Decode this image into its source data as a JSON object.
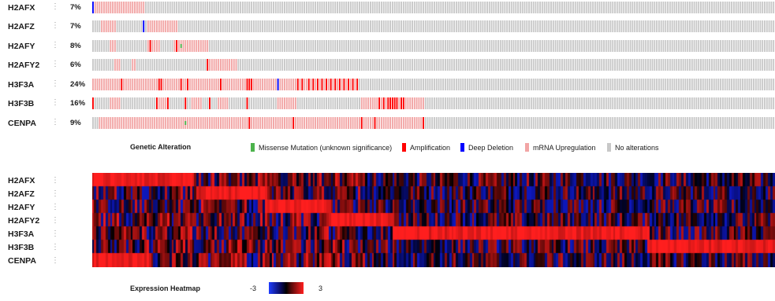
{
  "chart_data": [
    {
      "type": "oncoprint",
      "rows": [
        {
          "gene": "H2AFX",
          "percent": "7%"
        },
        {
          "gene": "H2AFZ",
          "percent": "7%"
        },
        {
          "gene": "H2AFY",
          "percent": "8%"
        },
        {
          "gene": "H2AFY2",
          "percent": "6%"
        },
        {
          "gene": "H3F3A",
          "percent": "24%"
        },
        {
          "gene": "H3F3B",
          "percent": "16%"
        },
        {
          "gene": "CENPA",
          "percent": "9%"
        }
      ],
      "num_samples": 310,
      "alterations": {
        "H2AFX": {
          "upregulation": [
            [
              1,
              23
            ]
          ],
          "amplification": [],
          "deep_deletion": [
            0
          ],
          "missense": []
        },
        "H2AFZ": {
          "upregulation": [
            [
              4,
              10
            ],
            [
              25,
              38
            ]
          ],
          "amplification": [],
          "deep_deletion": [
            23
          ],
          "missense": []
        },
        "H2AFY": {
          "upregulation": [
            [
              8,
              10
            ],
            [
              25,
              30
            ],
            [
              37,
              52
            ]
          ],
          "amplification": [
            26,
            38
          ],
          "deep_deletion": [],
          "missense": [
            40
          ]
        },
        "H2AFY2": {
          "upregulation": [
            [
              10,
              12
            ],
            [
              18,
              19
            ],
            [
              53,
              65
            ]
          ],
          "amplification": [
            52
          ],
          "deep_deletion": [],
          "missense": []
        },
        "H3F3A": {
          "upregulation": [
            [
              0,
              120
            ]
          ],
          "amplification": [
            13,
            30,
            31,
            40,
            43,
            58,
            70,
            71,
            72,
            84,
            93,
            95,
            98,
            100,
            102,
            104,
            106,
            108,
            110,
            112,
            114,
            116,
            118,
            120
          ],
          "deep_deletion": [
            84
          ],
          "missense": []
        },
        "H3F3B": {
          "upregulation": [
            [
              8,
              12
            ],
            [
              30,
              34
            ],
            [
              45,
              49
            ],
            [
              57,
              61
            ],
            [
              84,
              92
            ],
            [
              122,
              150
            ]
          ],
          "amplification": [
            0,
            29,
            34,
            42,
            53,
            70,
            130,
            132,
            134,
            135,
            136,
            137,
            138,
            140,
            141
          ],
          "deep_deletion": [],
          "missense": []
        },
        "CENPA": {
          "upregulation": [
            [
              3,
              150
            ]
          ],
          "amplification": [
            71,
            91,
            122,
            128,
            150
          ],
          "deep_deletion": [],
          "missense": [
            42
          ]
        }
      },
      "legend": {
        "title": "Genetic Alteration",
        "items": [
          {
            "label": "Missense Mutation (unknown significance)",
            "color": "#4cb34c"
          },
          {
            "label": "Amplification",
            "color": "#ff0000"
          },
          {
            "label": "Deep Deletion",
            "color": "#0000ff"
          },
          {
            "label": "mRNA Upregulation",
            "color": "#f2a5a5"
          },
          {
            "label": "No alterations",
            "color": "#c8c8c8"
          }
        ]
      }
    },
    {
      "type": "heatmap",
      "rows": [
        "H2AFX",
        "H2AFZ",
        "H2AFY",
        "H2AFY2",
        "H3F3A",
        "H3F3B",
        "CENPA"
      ],
      "high_blocks": [
        {
          "gene": "H2AFX",
          "from": 0,
          "to": 22
        },
        {
          "gene": "H2AFZ",
          "from": 24,
          "to": 38
        },
        {
          "gene": "H2AFY",
          "from": 38,
          "to": 52
        },
        {
          "gene": "H2AFY2",
          "from": 52,
          "to": 66
        },
        {
          "gene": "H3F3A",
          "from": 66,
          "to": 122
        },
        {
          "gene": "H3F3B",
          "from": 122,
          "to": 150
        },
        {
          "gene": "CENPA",
          "from": 0,
          "to": 12
        }
      ],
      "legend": {
        "title": "Expression Heatmap",
        "min": "-3",
        "max": "3",
        "low_color": "#1f3dff",
        "mid_color": "#000000",
        "high_color": "#ff1f1f"
      }
    }
  ]
}
